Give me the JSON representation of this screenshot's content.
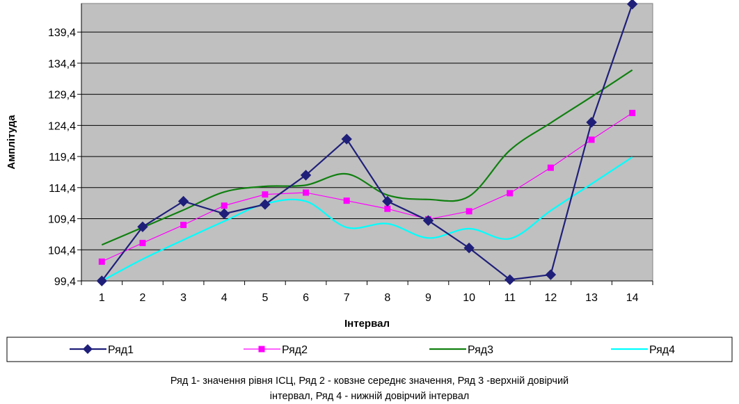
{
  "chart_data": {
    "type": "line",
    "title": "",
    "xlabel": "Інтервал",
    "ylabel": "Амплітуда",
    "x": [
      1,
      2,
      3,
      4,
      5,
      6,
      7,
      8,
      9,
      10,
      11,
      12,
      13,
      14
    ],
    "y_ticks": [
      "99,4",
      "104,4",
      "109,4",
      "114,4",
      "119,4",
      "124,4",
      "129,4",
      "134,4",
      "139,4"
    ],
    "ylim": [
      99.4,
      144.0
    ],
    "grid": true,
    "legend_position": "bottom",
    "series": [
      {
        "name": "Ряд1",
        "color": "#1f1f7a",
        "marker": "diamond",
        "values": [
          99.4,
          108.1,
          112.2,
          110.2,
          111.7,
          116.4,
          122.2,
          112.2,
          109.1,
          104.7,
          99.6,
          100.4,
          124.9,
          143.9
        ]
      },
      {
        "name": "Ряд2",
        "color": "#ff00ff",
        "marker": "square",
        "values": [
          102.5,
          105.5,
          108.4,
          111.5,
          113.3,
          113.6,
          112.3,
          111.0,
          109.3,
          110.6,
          113.5,
          117.6,
          122.1,
          126.4
        ]
      },
      {
        "name": "Ряд3",
        "color": "#108010",
        "marker": "none",
        "values": [
          105.2,
          108.0,
          110.8,
          113.7,
          114.6,
          114.8,
          116.6,
          113.2,
          112.5,
          113.0,
          120.4,
          124.8,
          129.0,
          133.3
        ]
      },
      {
        "name": "Ряд4",
        "color": "#00ffff",
        "marker": "none",
        "values": [
          99.4,
          102.9,
          106.0,
          109.0,
          111.8,
          112.2,
          108.0,
          108.6,
          106.3,
          107.8,
          106.2,
          110.7,
          115.0,
          119.3
        ]
      }
    ]
  },
  "caption": {
    "line1": "Ряд 1- значення рівня ІСЦ, Ряд 2 - ковзне середнє значення, Ряд 3 -верхній довірчий",
    "line2": "інтервал, Ряд 4 - нижній довірчий інтервал"
  }
}
